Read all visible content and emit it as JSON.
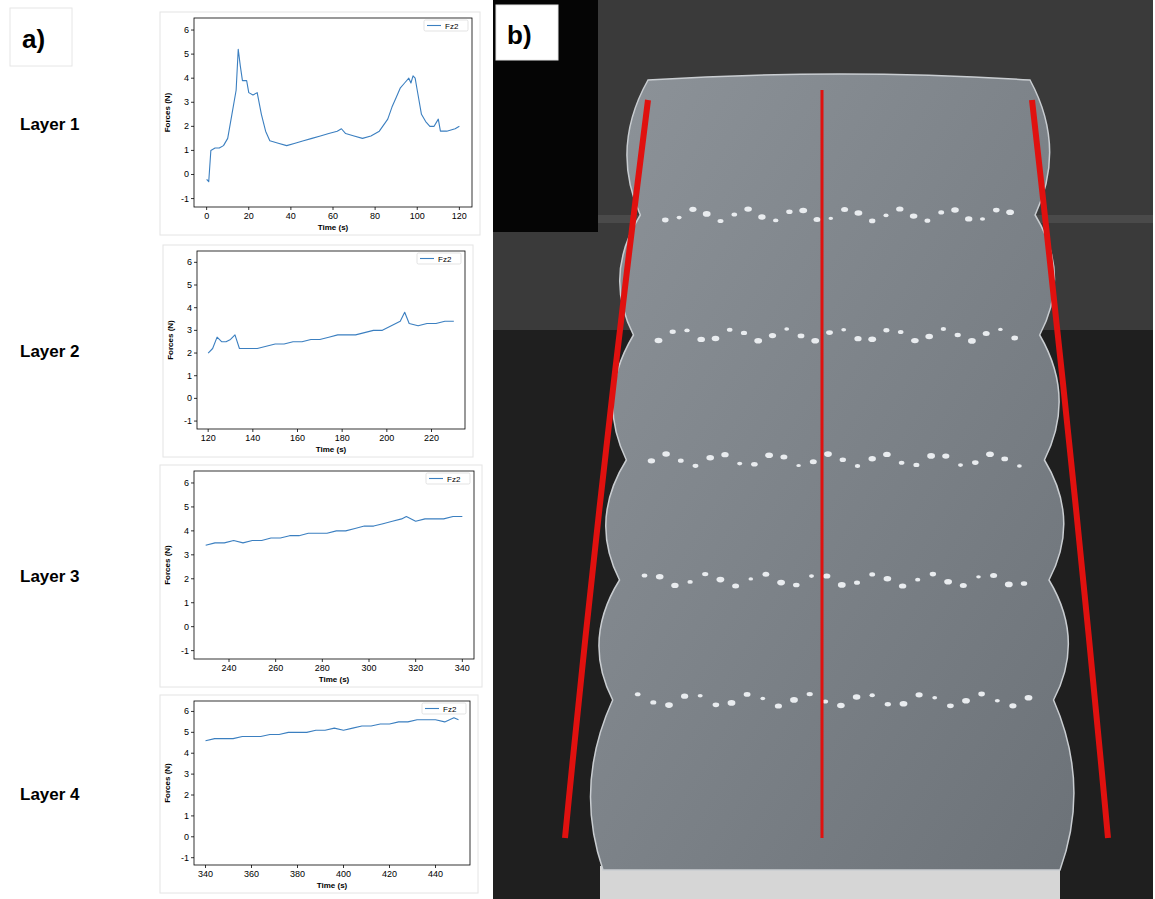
{
  "panel_labels": [
    "a)",
    "b)"
  ],
  "chart_data": [
    {
      "type": "line",
      "title": "Layer 1",
      "x_label": "Time (s)",
      "y_label": "Forces (N)",
      "x": [
        0,
        1,
        2,
        4,
        6,
        8,
        10,
        12,
        14,
        15,
        16,
        17,
        19,
        20,
        22,
        24,
        26,
        28,
        30,
        34,
        38,
        42,
        46,
        50,
        54,
        58,
        62,
        64,
        66,
        70,
        74,
        78,
        82,
        86,
        88,
        90,
        92,
        94,
        96,
        97,
        98,
        99,
        100,
        102,
        104,
        106,
        108,
        110,
        111,
        114,
        118,
        120
      ],
      "series": [
        {
          "name": "Fz2",
          "color": "#3b7fc0",
          "values": [
            -0.2,
            -0.3,
            1.0,
            1.1,
            1.1,
            1.2,
            1.5,
            2.5,
            3.5,
            5.2,
            4.5,
            3.9,
            3.9,
            3.4,
            3.3,
            3.4,
            2.5,
            1.8,
            1.4,
            1.3,
            1.2,
            1.3,
            1.4,
            1.5,
            1.6,
            1.7,
            1.8,
            1.9,
            1.7,
            1.6,
            1.5,
            1.6,
            1.8,
            2.3,
            2.8,
            3.2,
            3.6,
            3.8,
            4.0,
            3.8,
            4.1,
            4.0,
            3.5,
            2.5,
            2.2,
            2.0,
            2.0,
            2.3,
            1.8,
            1.8,
            1.9,
            2.0
          ]
        }
      ],
      "xlim": [
        -6,
        126
      ],
      "xticks": [
        0,
        20,
        40,
        60,
        80,
        100,
        120
      ],
      "ylim": [
        -1.35,
        6.5
      ],
      "yticks": [
        -1,
        0,
        1,
        2,
        3,
        4,
        5,
        6
      ],
      "legend": "upper right"
    },
    {
      "type": "line",
      "title": "Layer 2",
      "x_label": "Time (s)",
      "y_label": "Forces (N)",
      "x": [
        120,
        122,
        124,
        126,
        128,
        130,
        132,
        134,
        138,
        142,
        146,
        150,
        154,
        158,
        162,
        166,
        170,
        174,
        178,
        182,
        186,
        190,
        194,
        198,
        202,
        206,
        208,
        210,
        214,
        218,
        222,
        226,
        230
      ],
      "series": [
        {
          "name": "Fz2",
          "color": "#3b7fc0",
          "values": [
            2.0,
            2.2,
            2.7,
            2.5,
            2.5,
            2.6,
            2.8,
            2.2,
            2.2,
            2.2,
            2.3,
            2.4,
            2.4,
            2.5,
            2.5,
            2.6,
            2.6,
            2.7,
            2.8,
            2.8,
            2.8,
            2.9,
            3.0,
            3.0,
            3.2,
            3.4,
            3.8,
            3.3,
            3.2,
            3.3,
            3.3,
            3.4,
            3.4
          ]
        }
      ],
      "xlim": [
        115,
        235
      ],
      "xticks": [
        120,
        140,
        160,
        180,
        200,
        220
      ],
      "ylim": [
        -1.35,
        6.5
      ],
      "yticks": [
        -1,
        0,
        1,
        2,
        3,
        4,
        5,
        6
      ],
      "legend": "upper right"
    },
    {
      "type": "line",
      "title": "Layer 3",
      "x_label": "Time (s)",
      "y_label": "Forces (N)",
      "x": [
        230,
        234,
        238,
        242,
        246,
        250,
        254,
        258,
        262,
        266,
        270,
        274,
        278,
        282,
        286,
        290,
        294,
        298,
        302,
        306,
        310,
        314,
        316,
        320,
        324,
        328,
        332,
        336,
        340
      ],
      "series": [
        {
          "name": "Fz2",
          "color": "#3b7fc0",
          "values": [
            3.4,
            3.5,
            3.5,
            3.6,
            3.5,
            3.6,
            3.6,
            3.7,
            3.7,
            3.8,
            3.8,
            3.9,
            3.9,
            3.9,
            4.0,
            4.0,
            4.1,
            4.2,
            4.2,
            4.3,
            4.4,
            4.5,
            4.6,
            4.4,
            4.5,
            4.5,
            4.5,
            4.6,
            4.6
          ]
        }
      ],
      "xlim": [
        225,
        345
      ],
      "xticks": [
        240,
        260,
        280,
        300,
        320,
        340
      ],
      "ylim": [
        -1.35,
        6.5
      ],
      "yticks": [
        -1,
        0,
        1,
        2,
        3,
        4,
        5,
        6
      ],
      "legend": "upper right"
    },
    {
      "type": "line",
      "title": "Layer 4",
      "x_label": "Time (s)",
      "y_label": "Forces (N)",
      "x": [
        340,
        344,
        348,
        352,
        356,
        360,
        364,
        368,
        372,
        376,
        380,
        384,
        388,
        392,
        396,
        400,
        404,
        408,
        412,
        416,
        420,
        424,
        428,
        432,
        436,
        440,
        444,
        448,
        450
      ],
      "series": [
        {
          "name": "Fz2",
          "color": "#3b7fc0",
          "values": [
            4.6,
            4.7,
            4.7,
            4.7,
            4.8,
            4.8,
            4.8,
            4.9,
            4.9,
            5.0,
            5.0,
            5.0,
            5.1,
            5.1,
            5.2,
            5.1,
            5.2,
            5.3,
            5.3,
            5.4,
            5.4,
            5.5,
            5.5,
            5.6,
            5.6,
            5.6,
            5.5,
            5.7,
            5.6
          ]
        }
      ],
      "xlim": [
        335,
        455
      ],
      "xticks": [
        340,
        360,
        380,
        400,
        420,
        440
      ],
      "ylim": [
        -1.35,
        6.5
      ],
      "yticks": [
        -1,
        0,
        1,
        2,
        3,
        4,
        5,
        6
      ],
      "legend": "upper right"
    }
  ]
}
